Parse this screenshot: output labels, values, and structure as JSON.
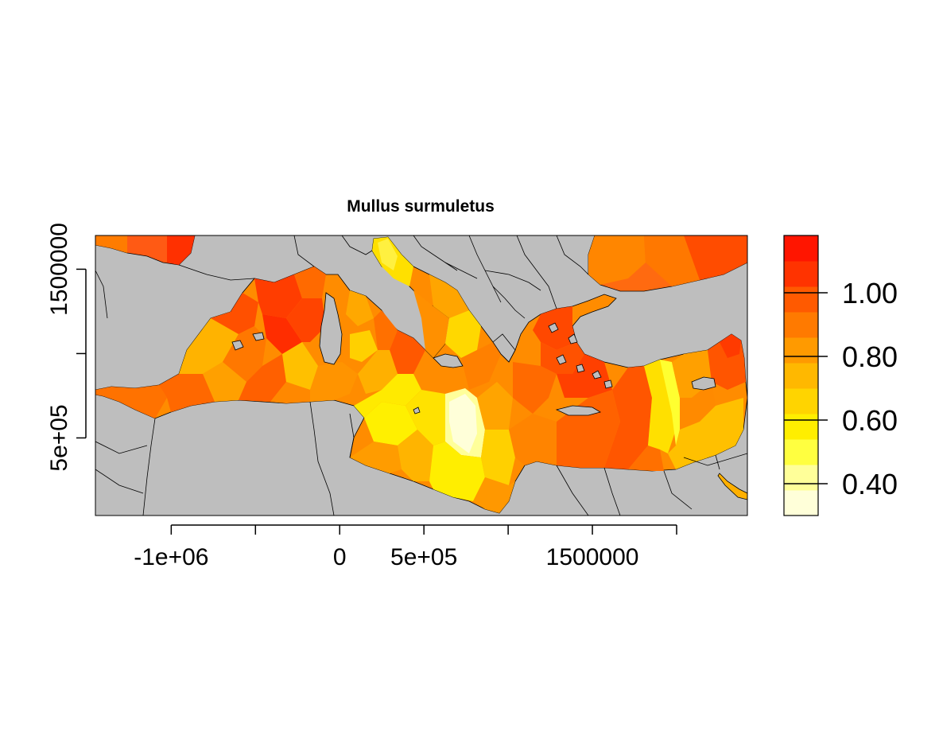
{
  "title": "Mullus surmuletus",
  "map": {
    "x_range": [
      -1450000,
      2420000
    ],
    "y_range": [
      40000,
      1700000
    ],
    "x_ticks": [
      {
        "value": -1000000,
        "label": "-1e+06"
      },
      {
        "value": -500000,
        "label": ""
      },
      {
        "value": 0,
        "label": "0"
      },
      {
        "value": 500000,
        "label": "5e+05"
      },
      {
        "value": 1000000,
        "label": ""
      },
      {
        "value": 1500000,
        "label": "1500000"
      },
      {
        "value": 2000000,
        "label": ""
      }
    ],
    "y_ticks": [
      {
        "value": 500000,
        "label": "5e+05"
      },
      {
        "value": 1000000,
        "label": ""
      },
      {
        "value": 1500000,
        "label": "1500000"
      }
    ],
    "colors": {
      "land": "#bebebe",
      "border": "#000000",
      "background": "#ffffff"
    }
  },
  "legend": {
    "range": [
      0.3,
      1.18
    ],
    "ticks": [
      {
        "value": 0.4,
        "label": "0.40"
      },
      {
        "value": 0.6,
        "label": "0.60"
      },
      {
        "value": 0.8,
        "label": "0.80"
      },
      {
        "value": 1.0,
        "label": "1.00"
      }
    ],
    "palette": [
      "#ffffd9",
      "#ffff99",
      "#ffff40",
      "#ffee00",
      "#ffd400",
      "#ffb800",
      "#ff9a00",
      "#ff7a00",
      "#ff5a00",
      "#ff3300",
      "#ff1500"
    ]
  }
}
